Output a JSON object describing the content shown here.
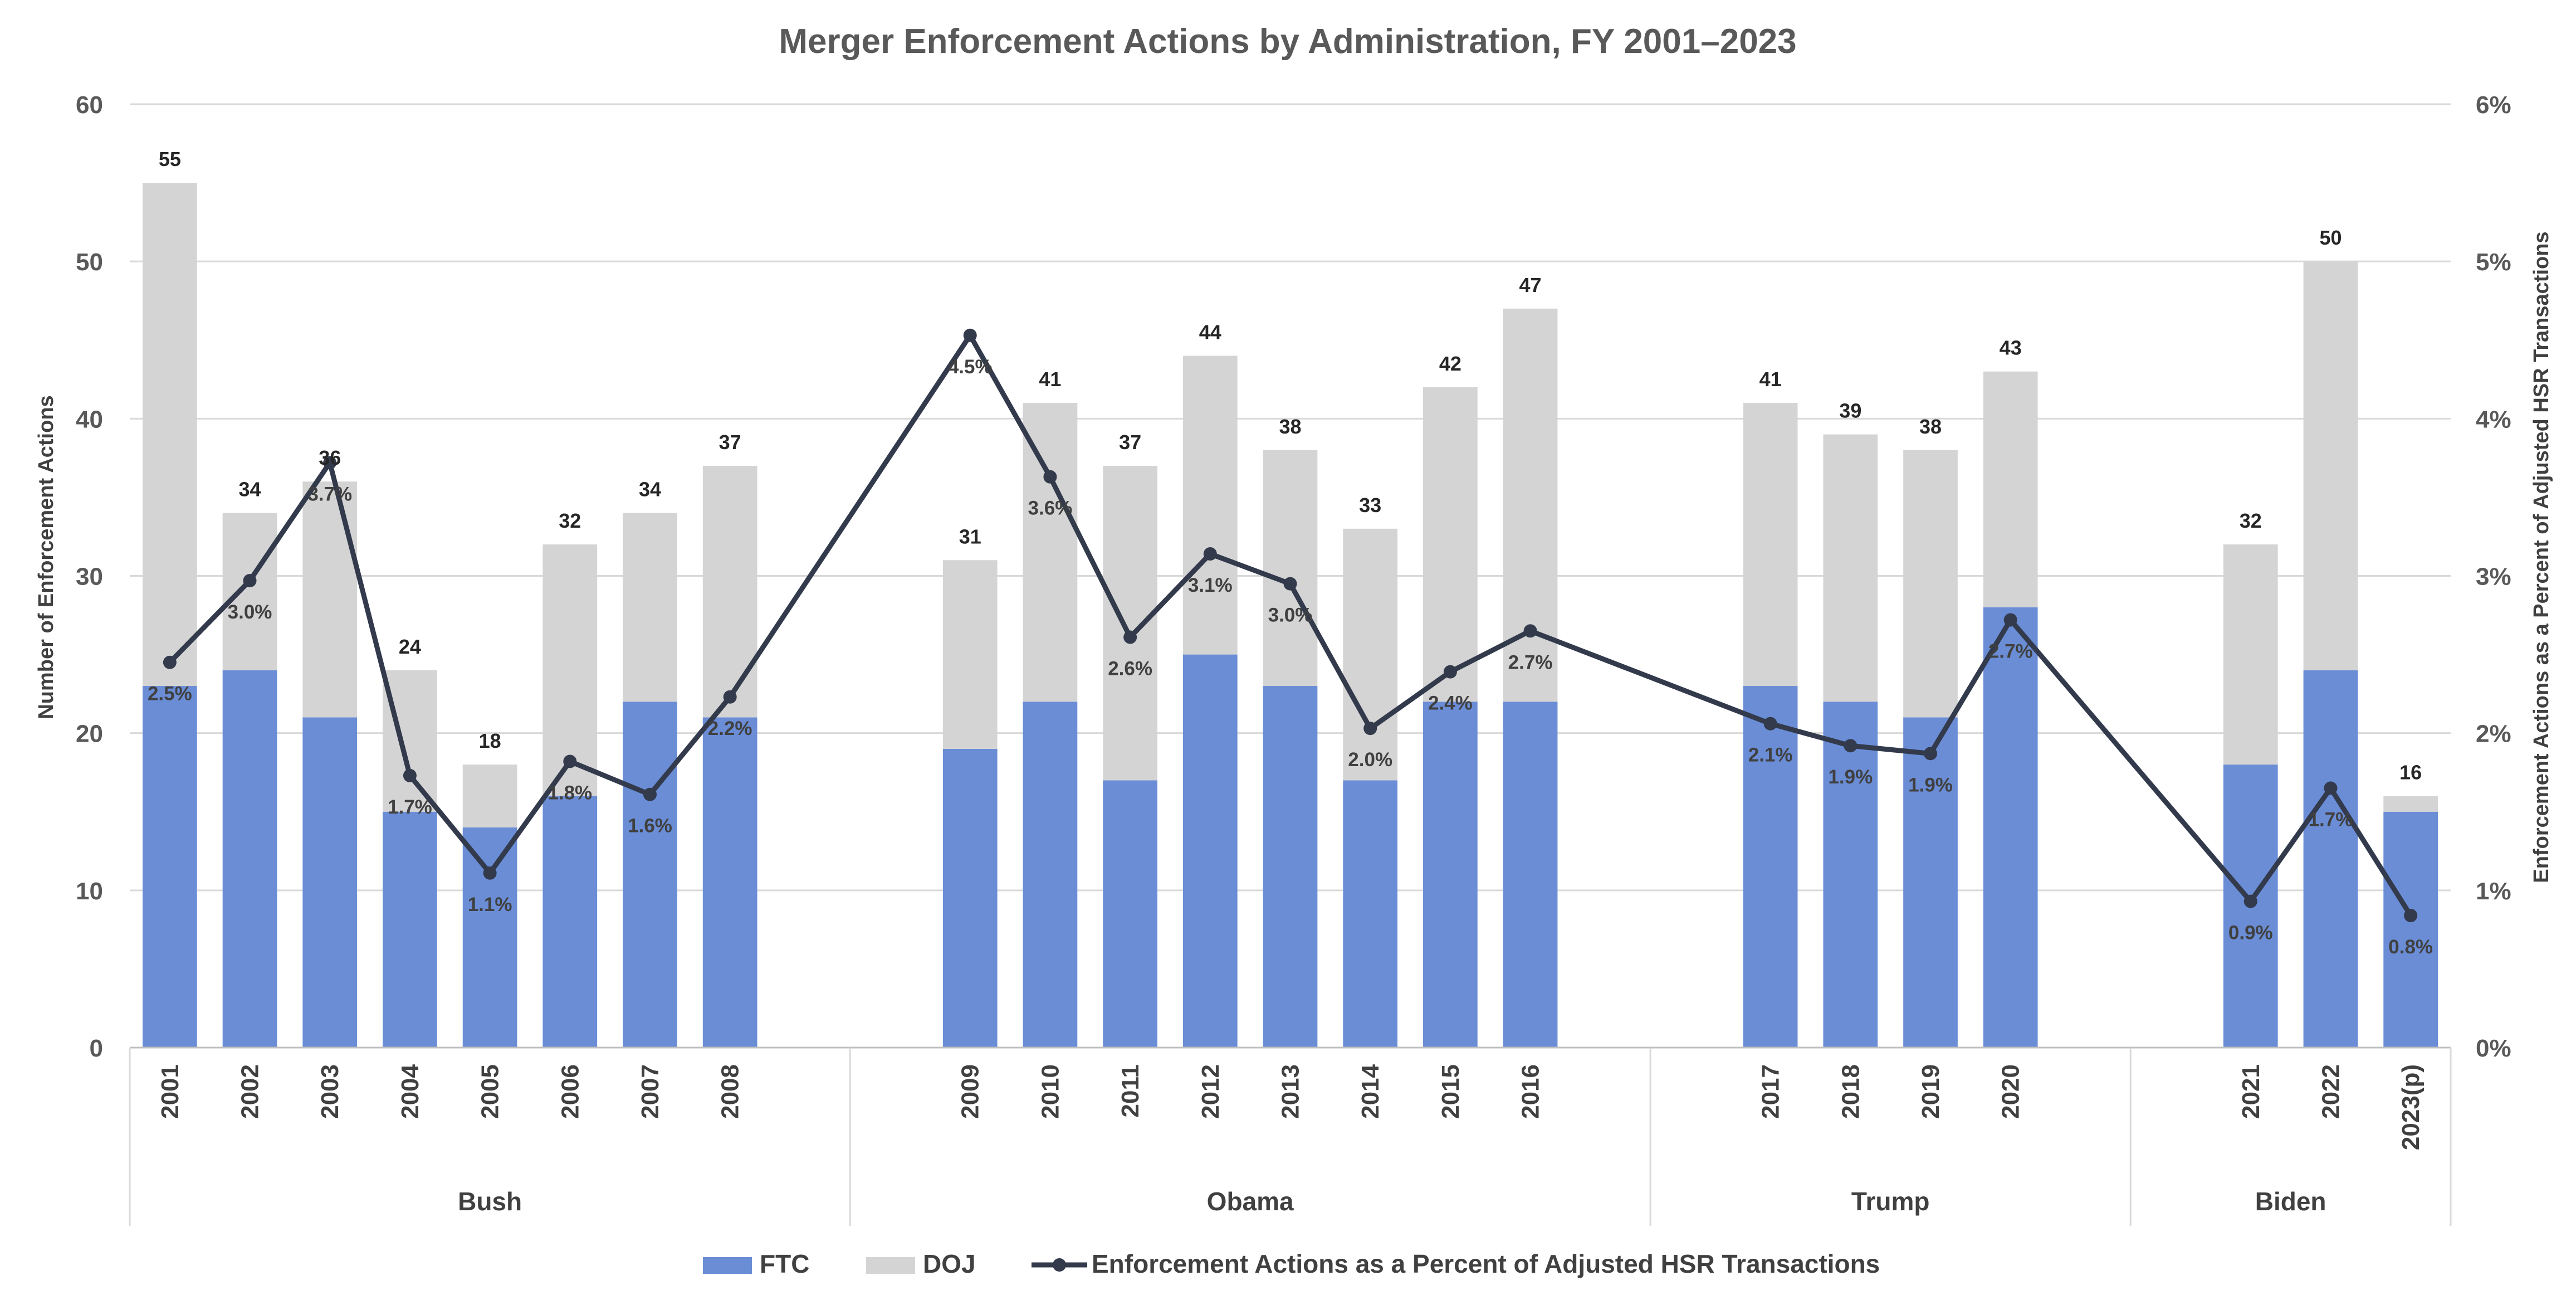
{
  "chart_data": {
    "type": "bar",
    "stacked": true,
    "title": "Merger Enforcement Actions by Administration, FY 2001–2023",
    "ylabel": "Number of Enforcement Actions",
    "y2label": "Enforcement Actions as a Percent of Adjusted HSR Transactions",
    "ylim": [
      0,
      60
    ],
    "yticks": [
      0,
      10,
      20,
      30,
      40,
      50,
      60
    ],
    "y2lim": [
      0,
      6
    ],
    "y2ticks": [
      "0%",
      "1%",
      "2%",
      "3%",
      "4%",
      "5%",
      "6%"
    ],
    "grid": true,
    "legend_position": "bottom",
    "groups": [
      {
        "name": "Bush",
        "categories": [
          "2001",
          "2002",
          "2003",
          "2004",
          "2005",
          "2006",
          "2007",
          "2008"
        ]
      },
      {
        "name": "Obama",
        "categories": [
          "2009",
          "2010",
          "2011",
          "2012",
          "2013",
          "2014",
          "2015",
          "2016"
        ]
      },
      {
        "name": "Trump",
        "categories": [
          "2017",
          "2018",
          "2019",
          "2020"
        ]
      },
      {
        "name": "Biden",
        "categories": [
          "2021",
          "2022",
          "2023(p)"
        ]
      }
    ],
    "categories": [
      "2001",
      "2002",
      "2003",
      "2004",
      "2005",
      "2006",
      "2007",
      "2008",
      "2009",
      "2010",
      "2011",
      "2012",
      "2013",
      "2014",
      "2015",
      "2016",
      "2017",
      "2018",
      "2019",
      "2020",
      "2021",
      "2022",
      "2023(p)"
    ],
    "totals": [
      55,
      34,
      36,
      24,
      18,
      32,
      34,
      37,
      31,
      41,
      37,
      44,
      38,
      33,
      42,
      47,
      41,
      39,
      38,
      43,
      32,
      50,
      16
    ],
    "series": [
      {
        "name": "FTC",
        "kind": "bar",
        "color": "#6a8dd6",
        "values": [
          23,
          24,
          21,
          15,
          14,
          16,
          22,
          21,
          19,
          22,
          17,
          25,
          23,
          17,
          22,
          22,
          23,
          22,
          21,
          28,
          18,
          24,
          15
        ]
      },
      {
        "name": "DOJ",
        "kind": "bar",
        "color": "#d4d4d4",
        "values": [
          32,
          10,
          15,
          9,
          4,
          16,
          12,
          16,
          12,
          19,
          20,
          19,
          15,
          16,
          20,
          25,
          18,
          17,
          17,
          15,
          14,
          26,
          1
        ]
      },
      {
        "name": "Enforcement Actions as a Percent of Adjusted HSR Transactions",
        "kind": "line",
        "axis": "secondary",
        "color": "#323a4c",
        "values": [
          2.45,
          2.97,
          3.72,
          1.73,
          1.11,
          1.82,
          1.61,
          2.23,
          4.53,
          3.63,
          2.61,
          3.14,
          2.95,
          2.03,
          2.39,
          2.65,
          2.06,
          1.92,
          1.87,
          2.72,
          0.93,
          1.65,
          0.84
        ],
        "labels": [
          "2.5%",
          "3.0%",
          "3.7%",
          "1.7%",
          "1.1%",
          "1.8%",
          "1.6%",
          "2.2%",
          "4.5%",
          "3.6%",
          "2.6%",
          "3.1%",
          "3.0%",
          "2.0%",
          "2.4%",
          "2.7%",
          "2.1%",
          "1.9%",
          "1.9%",
          "2.7%",
          "0.9%",
          "1.7%",
          "0.8%"
        ]
      }
    ]
  }
}
